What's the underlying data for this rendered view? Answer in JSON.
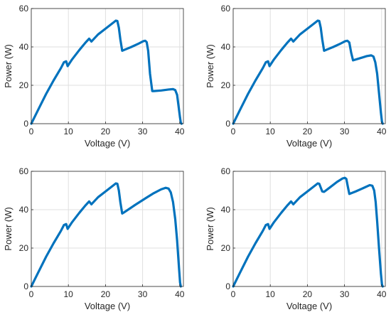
{
  "chart_data": [
    {
      "type": "line",
      "xlabel": "Voltage (V)",
      "ylabel": "Power (W)",
      "xlim": [
        0,
        41
      ],
      "ylim": [
        0,
        60
      ],
      "xticks": [
        0,
        10,
        20,
        30,
        40
      ],
      "yticks": [
        0,
        20,
        40,
        60
      ],
      "grid": true,
      "color": "#0072BD",
      "series": [
        {
          "x": [
            0,
            2,
            4,
            6,
            8,
            8.8,
            9.4,
            9.8,
            11,
            13,
            14.5,
            15.6,
            16.2,
            18,
            20,
            22,
            22.8,
            23.2,
            23.6,
            24.0,
            24.5,
            25,
            27,
            29,
            30.2,
            30.7,
            31.1,
            31.5,
            32,
            32.6,
            33,
            35,
            37,
            38.2,
            38.8,
            39.3,
            39.7,
            40.1,
            40.3,
            40.5
          ],
          "y": [
            0,
            7.8,
            15.5,
            22.5,
            29,
            32,
            32.5,
            30,
            33.5,
            38.5,
            42,
            44.3,
            42.8,
            46.5,
            49.5,
            52.5,
            53.7,
            53.5,
            50,
            44,
            38,
            38.4,
            40,
            41.8,
            43,
            43.2,
            42.5,
            38,
            26,
            17,
            17,
            17.3,
            17.8,
            18,
            17.5,
            15,
            9,
            3,
            0.5,
            0
          ]
        }
      ]
    },
    {
      "type": "line",
      "xlabel": "Voltage (V)",
      "ylabel": "Power (W)",
      "xlim": [
        0,
        41
      ],
      "ylim": [
        0,
        60
      ],
      "xticks": [
        0,
        10,
        20,
        30,
        40
      ],
      "yticks": [
        0,
        20,
        40,
        60
      ],
      "grid": true,
      "color": "#0072BD",
      "series": [
        {
          "x": [
            0,
            2,
            4,
            6,
            8,
            8.8,
            9.4,
            9.8,
            11,
            13,
            14.5,
            15.6,
            16.2,
            18,
            20,
            22,
            22.8,
            23.2,
            23.6,
            24.0,
            24.5,
            25,
            27,
            29,
            30.2,
            30.8,
            31.3,
            31.8,
            32.3,
            34,
            36,
            37.2,
            37.8,
            38.3,
            38.8,
            39.3,
            39.8,
            40.1,
            40.3
          ],
          "y": [
            0,
            7.8,
            15.5,
            22.5,
            29,
            32,
            32.5,
            30,
            33.5,
            38.5,
            42,
            44.3,
            42.8,
            46.5,
            49.5,
            52.5,
            53.7,
            53.5,
            50,
            44,
            38,
            38.4,
            40,
            41.8,
            43,
            43.2,
            42.3,
            37,
            33,
            34,
            35.2,
            35.6,
            35,
            32,
            26,
            16,
            6,
            1,
            0
          ]
        }
      ]
    },
    {
      "type": "line",
      "xlabel": "Voltage (V)",
      "ylabel": "Power (W)",
      "xlim": [
        0,
        41
      ],
      "ylim": [
        0,
        60
      ],
      "xticks": [
        0,
        10,
        20,
        30,
        40
      ],
      "yticks": [
        0,
        20,
        40,
        60
      ],
      "grid": true,
      "color": "#0072BD",
      "series": [
        {
          "x": [
            0,
            2,
            4,
            6,
            8,
            8.8,
            9.4,
            9.8,
            11,
            13,
            14.5,
            15.6,
            16.2,
            18,
            20,
            22,
            22.8,
            23.2,
            23.6,
            24.0,
            24.5,
            25,
            28,
            31,
            33,
            35,
            36.2,
            37,
            37.6,
            38.2,
            38.8,
            39.3,
            39.8,
            40.1,
            40.3
          ],
          "y": [
            0,
            7.8,
            15.5,
            22.5,
            29,
            32,
            32.5,
            30,
            33.5,
            38.5,
            42,
            44.3,
            42.8,
            46.5,
            49.5,
            52.5,
            53.7,
            53.5,
            50,
            44,
            38,
            38.6,
            42.5,
            46.2,
            48.6,
            50.6,
            51.4,
            51,
            49,
            44,
            35,
            24,
            10,
            2,
            0
          ]
        }
      ]
    },
    {
      "type": "line",
      "xlabel": "Voltage (V)",
      "ylabel": "Power (W)",
      "xlim": [
        0,
        41
      ],
      "ylim": [
        0,
        60
      ],
      "xticks": [
        0,
        10,
        20,
        30,
        40
      ],
      "yticks": [
        0,
        20,
        40,
        60
      ],
      "grid": true,
      "color": "#0072BD",
      "series": [
        {
          "x": [
            0,
            2,
            4,
            6,
            8,
            8.8,
            9.4,
            9.8,
            11,
            13,
            14.5,
            15.6,
            16.2,
            18,
            20,
            22,
            22.8,
            23.2,
            23.6,
            24.0,
            24.5,
            26,
            28,
            29.5,
            30.1,
            30.5,
            30.9,
            31.3,
            33,
            35,
            36.8,
            37.5,
            38.0,
            38.4,
            38.8,
            39.3,
            39.8,
            40.1,
            40.3
          ],
          "y": [
            0,
            7.8,
            15.5,
            22.5,
            29,
            32,
            32.5,
            30,
            33.5,
            38.5,
            42,
            44.3,
            42.8,
            46.5,
            49.5,
            52.5,
            53.7,
            53.5,
            51.5,
            49.5,
            49.3,
            51.5,
            54.5,
            56.3,
            56.6,
            56,
            52,
            48.2,
            49.5,
            51.2,
            52.8,
            52.5,
            50,
            44,
            34,
            20,
            7,
            1,
            0
          ]
        }
      ]
    }
  ]
}
